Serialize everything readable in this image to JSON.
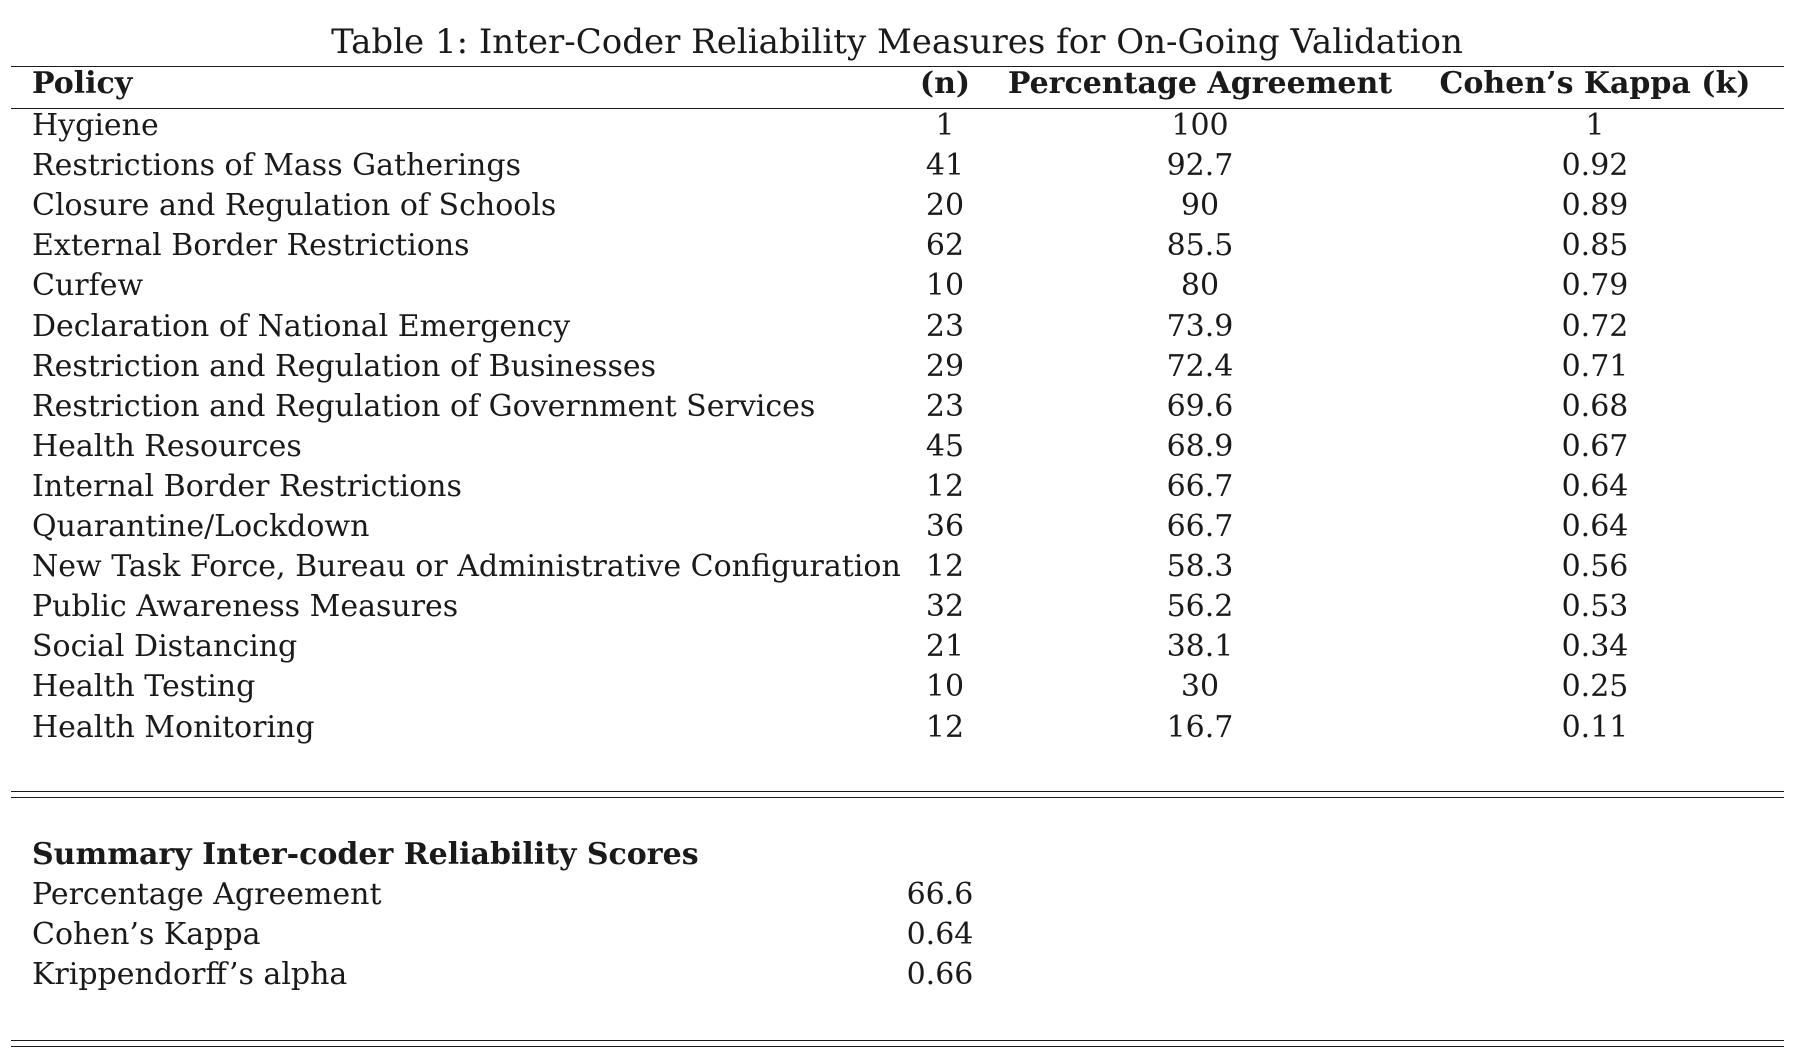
{
  "caption": "Table 1: Inter-Coder Reliability Measures for On-Going Validation",
  "table": {
    "headers": {
      "policy": "Policy",
      "n": "(n)",
      "percentage_agreement": "Percentage Agreement",
      "cohens_kappa": "Cohen’s Kappa (k)"
    },
    "rows": [
      {
        "policy": "Hygiene",
        "n": "1",
        "pa": "100",
        "kappa": "1"
      },
      {
        "policy": "Restrictions of Mass Gatherings",
        "n": "41",
        "pa": "92.7",
        "kappa": "0.92"
      },
      {
        "policy": "Closure and Regulation of Schools",
        "n": "20",
        "pa": "90",
        "kappa": "0.89"
      },
      {
        "policy": "External Border Restrictions",
        "n": "62",
        "pa": "85.5",
        "kappa": "0.85"
      },
      {
        "policy": "Curfew",
        "n": "10",
        "pa": "80",
        "kappa": "0.79"
      },
      {
        "policy": "Declaration of National Emergency",
        "n": "23",
        "pa": "73.9",
        "kappa": "0.72"
      },
      {
        "policy": "Restriction and Regulation of Businesses",
        "n": "29",
        "pa": "72.4",
        "kappa": "0.71"
      },
      {
        "policy": "Restriction and Regulation of Government Services",
        "n": "23",
        "pa": "69.6",
        "kappa": "0.68"
      },
      {
        "policy": "Health Resources",
        "n": "45",
        "pa": "68.9",
        "kappa": "0.67"
      },
      {
        "policy": "Internal Border Restrictions",
        "n": "12",
        "pa": "66.7",
        "kappa": "0.64"
      },
      {
        "policy": "Quarantine/Lockdown",
        "n": "36",
        "pa": "66.7",
        "kappa": "0.64"
      },
      {
        "policy": "New Task Force, Bureau or Administrative Configuration",
        "n": "12",
        "pa": "58.3",
        "kappa": "0.56"
      },
      {
        "policy": "Public Awareness Measures",
        "n": "32",
        "pa": "56.2",
        "kappa": "0.53"
      },
      {
        "policy": "Social Distancing",
        "n": "21",
        "pa": "38.1",
        "kappa": "0.34"
      },
      {
        "policy": "Health Testing",
        "n": "10",
        "pa": "30",
        "kappa": "0.25"
      },
      {
        "policy": "Health Monitoring",
        "n": "12",
        "pa": "16.7",
        "kappa": "0.11"
      }
    ]
  },
  "summary": {
    "heading": "Summary Inter-coder Reliability Scores",
    "items": [
      {
        "label": "Percentage Agreement",
        "value": "66.6"
      },
      {
        "label": "Cohen’s Kappa",
        "value": "0.64"
      },
      {
        "label": "Krippendorff’s alpha",
        "value": "0.66"
      }
    ]
  }
}
